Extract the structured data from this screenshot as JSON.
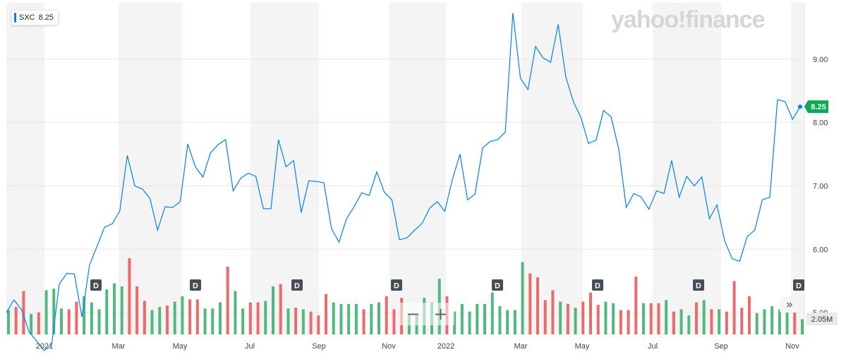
{
  "watermark": "yahoo!finance",
  "legend": {
    "symbol": "SXC",
    "value": "8.25",
    "color": "#0081f2"
  },
  "controls": {
    "zoom_out": "−",
    "zoom_in": "+",
    "forward": "»"
  },
  "colors": {
    "line": "#0081f2",
    "up": "#51b87e",
    "down": "#ed6a6a",
    "band": "#f4f4f4",
    "price_tag": "#0bab55",
    "volume_tag": "#e9e9e9",
    "dividend": "#464e56"
  },
  "chart_data": {
    "type": "line",
    "title": "",
    "x_labels": [
      "2021",
      "Mar",
      "May",
      "Jul",
      "Sep",
      "Nov",
      "2022",
      "Mar",
      "May",
      "Jul",
      "Sep",
      "Nov"
    ],
    "y_ticks": [
      "5.00",
      "6.00",
      "7.00",
      "8.00",
      "9.00"
    ],
    "ylim": [
      4.7,
      9.8
    ],
    "last_price_label": "8.25",
    "volume_label": "2.05M",
    "dividend_label": "D",
    "series": [
      {
        "values": [
          5.0,
          5.2,
          5.05,
          4.7,
          4.55,
          4.4,
          4.5,
          5.45,
          5.62,
          5.61,
          4.93,
          5.75,
          6.05,
          6.35,
          6.4,
          6.6,
          7.48,
          7.0,
          6.95,
          6.8,
          6.3,
          6.67,
          6.66,
          6.75,
          7.66,
          7.3,
          7.14,
          7.52,
          7.65,
          7.73,
          6.92,
          7.12,
          7.2,
          7.15,
          6.64,
          6.64,
          7.73,
          7.3,
          7.4,
          6.58,
          7.08,
          7.07,
          7.05,
          6.33,
          6.11,
          6.48,
          6.67,
          6.89,
          6.85,
          7.22,
          6.9,
          6.78,
          6.15,
          6.18,
          6.3,
          6.41,
          6.65,
          6.75,
          6.6,
          7.1,
          7.5,
          6.78,
          6.87,
          7.6,
          7.7,
          7.73,
          7.85,
          9.73,
          8.7,
          8.52,
          9.2,
          9.02,
          8.95,
          9.55,
          8.72,
          8.33,
          8.08,
          7.67,
          7.72,
          8.19,
          8.09,
          7.58,
          6.66,
          6.88,
          6.82,
          6.63,
          6.92,
          6.88,
          7.4,
          6.82,
          7.15,
          7.0,
          7.14,
          6.48,
          6.7,
          6.14,
          5.85,
          5.81,
          6.2,
          6.3,
          6.78,
          6.82,
          8.36,
          8.33,
          8.05,
          8.25
        ]
      }
    ],
    "volume": [
      {
        "value": 0.32,
        "dir": "up"
      },
      {
        "value": 0.36,
        "dir": "down"
      },
      {
        "value": 0.57,
        "dir": "down"
      },
      {
        "value": 0.27,
        "dir": "up"
      },
      {
        "value": 0.29,
        "dir": "down"
      },
      {
        "value": 0.58,
        "dir": "up"
      },
      {
        "value": 0.6,
        "dir": "up"
      },
      {
        "value": 0.34,
        "dir": "up"
      },
      {
        "value": 0.33,
        "dir": "down"
      },
      {
        "value": 0.43,
        "dir": "down"
      },
      {
        "value": 0.5,
        "dir": "up"
      },
      {
        "value": 0.42,
        "dir": "up"
      },
      {
        "value": 0.33,
        "dir": "up"
      },
      {
        "value": 0.59,
        "dir": "up"
      },
      {
        "value": 0.67,
        "dir": "up"
      },
      {
        "value": 0.63,
        "dir": "up"
      },
      {
        "value": 1.0,
        "dir": "down"
      },
      {
        "value": 0.63,
        "dir": "down"
      },
      {
        "value": 0.44,
        "dir": "down"
      },
      {
        "value": 0.32,
        "dir": "up"
      },
      {
        "value": 0.36,
        "dir": "up"
      },
      {
        "value": 0.38,
        "dir": "down"
      },
      {
        "value": 0.43,
        "dir": "up"
      },
      {
        "value": 0.5,
        "dir": "up"
      },
      {
        "value": 0.46,
        "dir": "down"
      },
      {
        "value": 0.46,
        "dir": "down"
      },
      {
        "value": 0.34,
        "dir": "up"
      },
      {
        "value": 0.34,
        "dir": "up"
      },
      {
        "value": 0.42,
        "dir": "up"
      },
      {
        "value": 0.89,
        "dir": "down"
      },
      {
        "value": 0.57,
        "dir": "up"
      },
      {
        "value": 0.34,
        "dir": "up"
      },
      {
        "value": 0.42,
        "dir": "down"
      },
      {
        "value": 0.42,
        "dir": "down"
      },
      {
        "value": 0.44,
        "dir": "up"
      },
      {
        "value": 0.63,
        "dir": "up"
      },
      {
        "value": 0.66,
        "dir": "down"
      },
      {
        "value": 0.34,
        "dir": "up"
      },
      {
        "value": 0.35,
        "dir": "down"
      },
      {
        "value": 0.33,
        "dir": "up"
      },
      {
        "value": 0.3,
        "dir": "down"
      },
      {
        "value": 0.25,
        "dir": "down"
      },
      {
        "value": 0.53,
        "dir": "down"
      },
      {
        "value": 0.42,
        "dir": "up"
      },
      {
        "value": 0.4,
        "dir": "up"
      },
      {
        "value": 0.4,
        "dir": "up"
      },
      {
        "value": 0.4,
        "dir": "up"
      },
      {
        "value": 0.33,
        "dir": "down"
      },
      {
        "value": 0.4,
        "dir": "up"
      },
      {
        "value": 0.42,
        "dir": "up"
      },
      {
        "value": 0.5,
        "dir": "down"
      },
      {
        "value": 0.33,
        "dir": "down"
      },
      {
        "value": 0.48,
        "dir": "down"
      },
      {
        "value": 0.25,
        "dir": "up"
      },
      {
        "value": 0.25,
        "dir": "up"
      },
      {
        "value": 0.48,
        "dir": "up"
      },
      {
        "value": 0.42,
        "dir": "up"
      },
      {
        "value": 0.73,
        "dir": "up"
      },
      {
        "value": 0.5,
        "dir": "down"
      },
      {
        "value": 0.3,
        "dir": "up"
      },
      {
        "value": 0.4,
        "dir": "up"
      },
      {
        "value": 0.3,
        "dir": "up"
      },
      {
        "value": 0.4,
        "dir": "up"
      },
      {
        "value": 0.4,
        "dir": "up"
      },
      {
        "value": 0.55,
        "dir": "up"
      },
      {
        "value": 0.37,
        "dir": "up"
      },
      {
        "value": 0.32,
        "dir": "up"
      },
      {
        "value": 0.32,
        "dir": "up"
      },
      {
        "value": 0.95,
        "dir": "up"
      },
      {
        "value": 0.8,
        "dir": "down"
      },
      {
        "value": 0.75,
        "dir": "down"
      },
      {
        "value": 0.45,
        "dir": "down"
      },
      {
        "value": 0.58,
        "dir": "down"
      },
      {
        "value": 0.43,
        "dir": "up"
      },
      {
        "value": 0.4,
        "dir": "down"
      },
      {
        "value": 0.35,
        "dir": "up"
      },
      {
        "value": 0.43,
        "dir": "down"
      },
      {
        "value": 0.55,
        "dir": "down"
      },
      {
        "value": 0.39,
        "dir": "down"
      },
      {
        "value": 0.43,
        "dir": "up"
      },
      {
        "value": 0.41,
        "dir": "up"
      },
      {
        "value": 0.32,
        "dir": "down"
      },
      {
        "value": 0.32,
        "dir": "down"
      },
      {
        "value": 0.76,
        "dir": "down"
      },
      {
        "value": 0.41,
        "dir": "up"
      },
      {
        "value": 0.41,
        "dir": "down"
      },
      {
        "value": 0.41,
        "dir": "down"
      },
      {
        "value": 0.45,
        "dir": "up"
      },
      {
        "value": 0.3,
        "dir": "down"
      },
      {
        "value": 0.33,
        "dir": "up"
      },
      {
        "value": 0.25,
        "dir": "up"
      },
      {
        "value": 0.42,
        "dir": "down"
      },
      {
        "value": 0.45,
        "dir": "up"
      },
      {
        "value": 0.33,
        "dir": "down"
      },
      {
        "value": 0.33,
        "dir": "up"
      },
      {
        "value": 0.3,
        "dir": "down"
      },
      {
        "value": 0.7,
        "dir": "down"
      },
      {
        "value": 0.35,
        "dir": "down"
      },
      {
        "value": 0.5,
        "dir": "down"
      },
      {
        "value": 0.28,
        "dir": "up"
      },
      {
        "value": 0.33,
        "dir": "up"
      },
      {
        "value": 0.37,
        "dir": "up"
      },
      {
        "value": 0.33,
        "dir": "up"
      },
      {
        "value": 0.36,
        "dir": "up"
      },
      {
        "value": 0.36,
        "dir": "down"
      },
      {
        "value": 0.2,
        "dir": "up"
      }
    ],
    "dividend_markers": 8,
    "grid": true
  }
}
